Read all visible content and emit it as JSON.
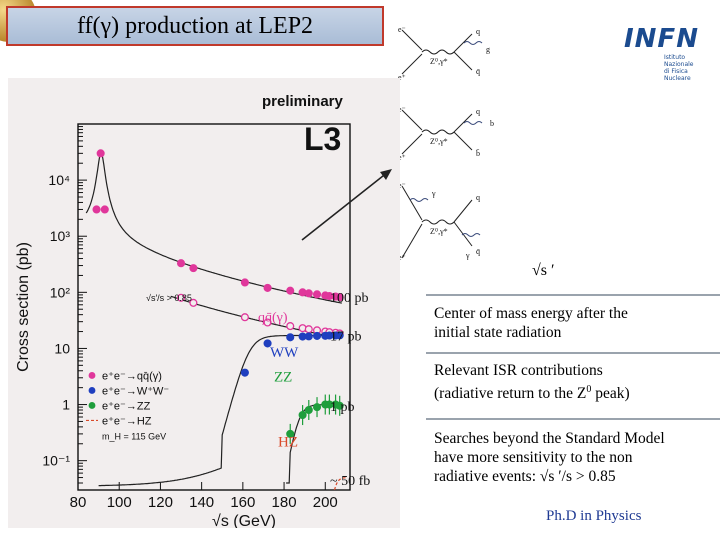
{
  "slide": {
    "title": "ff(γ) production at LEP2",
    "footer": "Ph.D in Physics"
  },
  "logo": {
    "name": "INFN",
    "subtitle_line1": "Istituto Nazionale",
    "subtitle_line2": "di Fisica Nucleare"
  },
  "right_panel": {
    "sqrt_s_prime": "√s ′",
    "para1_line1": "Center of mass energy after the",
    "para1_line2": "initial state radiation",
    "para2_line1": "Relevant ISR contributions",
    "para2_line2": "(radiative return to the Z",
    "para2_sup": "0",
    "para2_line2_end": " peak)",
    "para3_line1": "Searches beyond the Standard Model",
    "para3_line2": "have more sensitivity to the non",
    "para3_line3": "radiative events:  √s ′/s  > 0.85"
  },
  "feynman_labels": {
    "diagram1": [
      "e⁻",
      "e⁺",
      "Z⁰,γ*",
      "q",
      "q̄",
      "g"
    ],
    "diagram2": [
      "e⁻",
      "e⁺",
      "Z⁰,γ*",
      "q",
      "b",
      "b̄"
    ],
    "diagram3": [
      "e⁻",
      "e⁺",
      "γ",
      "Z⁰,γ*",
      "q",
      "q̄",
      "γ"
    ]
  },
  "chart_data": {
    "type": "scatter",
    "label_top": "preliminary",
    "experiment": "L3",
    "xlabel": "√s (GeV)",
    "ylabel": "Cross section (pb)",
    "x_ticks": [
      80,
      100,
      120,
      140,
      160,
      180,
      200
    ],
    "xlim": [
      80,
      212
    ],
    "y_scale": "log",
    "ylim": [
      0.03,
      100000
    ],
    "y_tick_labels": [
      "10⁻¹",
      "1",
      "10",
      "10²",
      "10³",
      "10⁴"
    ],
    "y_tick_values": [
      0.1,
      1,
      10,
      100,
      1000,
      10000
    ],
    "cut_label": "√s′/s > 0.85",
    "legend": [
      {
        "label": "e⁺e⁻→qq̄(γ)",
        "color": "#e0379b"
      },
      {
        "label": "e⁺e⁻→W⁺W⁻",
        "color": "#1f3fbf"
      },
      {
        "label": "e⁺e⁻→ZZ",
        "color": "#1f9e3c"
      },
      {
        "label": "e⁺e⁻→HZ",
        "color": "#d94a2a"
      },
      {
        "label": "m_H = 115 GeV",
        "color": "#000000"
      }
    ],
    "curve_labels": [
      "100 pb",
      "qq̄(γ)",
      "17 pb",
      "WW",
      "ZZ",
      "1 pb",
      "HZ",
      "~ 50 fb"
    ],
    "series": [
      {
        "name": "qq̄(γ) inclusive",
        "color": "#e0379b",
        "filled": true,
        "x": [
          89,
          91,
          93,
          130,
          136,
          161,
          172,
          183,
          189,
          192,
          196,
          200,
          202,
          205,
          207
        ],
        "y": [
          3000,
          30000,
          3000,
          330,
          270,
          150,
          120,
          107,
          100,
          96,
          92,
          88,
          86,
          84,
          82
        ]
      },
      {
        "name": "qq̄(γ) √s′/s > 0.85",
        "color": "#e0379b",
        "filled": false,
        "x": [
          130,
          136,
          161,
          172,
          183,
          189,
          192,
          196,
          200,
          202,
          205,
          207
        ],
        "y": [
          80,
          65,
          36,
          29,
          25,
          23,
          22,
          21,
          20,
          19.5,
          19,
          18.5
        ]
      },
      {
        "name": "WW",
        "color": "#1f3fbf",
        "filled": true,
        "x": [
          161,
          172,
          183,
          189,
          192,
          196,
          200,
          202,
          205,
          207
        ],
        "y": [
          3.7,
          12.3,
          15.8,
          16.3,
          16.4,
          16.7,
          16.8,
          17,
          17,
          17.1
        ]
      },
      {
        "name": "ZZ",
        "color": "#1f9e3c",
        "filled": true,
        "x": [
          183,
          189,
          192,
          196,
          200,
          202,
          205,
          207
        ],
        "y": [
          0.3,
          0.65,
          0.8,
          0.9,
          1.0,
          1.0,
          1.0,
          0.95
        ]
      }
    ]
  }
}
